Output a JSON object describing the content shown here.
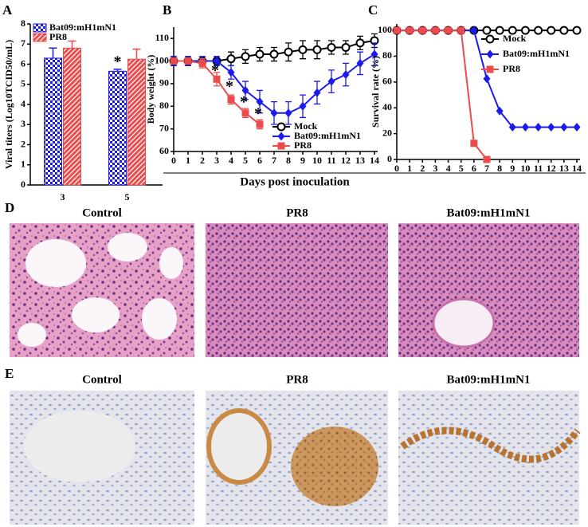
{
  "chart_data": [
    {
      "type": "bar",
      "panel_label": "A",
      "ylabel": "Viral titers (Log10TCID50/mL)",
      "categories": [
        "3",
        "5"
      ],
      "series": [
        {
          "name": "Bat09:mH1mN1",
          "color": "#1b1bf0",
          "fill": "checker",
          "values": [
            6.3,
            5.65
          ],
          "errors": [
            0.5,
            0.1
          ]
        },
        {
          "name": "PR8",
          "color": "#ea4b4b",
          "fill": "stripes",
          "values": [
            6.8,
            6.25
          ],
          "errors": [
            0.35,
            0.5
          ]
        }
      ],
      "ylim": [
        0,
        8
      ],
      "yticks": [
        0,
        1,
        2,
        3,
        4,
        5,
        6,
        7,
        8
      ],
      "legend": "top-left",
      "annotations": [
        {
          "text": "*",
          "category": 1,
          "series": 0
        }
      ]
    },
    {
      "type": "line",
      "panel_label": "B",
      "ylabel": "Body weight (%)",
      "x": [
        0,
        1,
        2,
        3,
        4,
        5,
        6,
        7,
        8,
        9,
        10,
        11,
        12,
        13,
        14
      ],
      "series": [
        {
          "name": "Mock",
          "color": "#000000",
          "marker": "circle-open",
          "values": [
            100,
            100,
            100,
            100,
            101,
            102,
            103,
            103,
            104,
            105,
            105,
            106,
            106,
            108,
            109
          ],
          "errors": [
            2,
            2,
            2,
            2,
            3,
            3,
            3,
            3,
            4,
            4,
            4,
            3,
            3,
            3,
            3
          ]
        },
        {
          "name": "Bat09:mH1mN1",
          "color": "#1b1bf0",
          "marker": "diamond",
          "values": [
            100,
            100,
            100,
            100,
            95,
            87,
            82,
            77,
            77,
            80,
            86,
            91,
            94,
            99,
            103
          ],
          "errors": [
            2,
            2,
            2,
            2,
            3,
            4,
            5,
            5,
            5,
            5,
            5,
            5,
            5,
            5,
            5
          ]
        },
        {
          "name": "PR8",
          "color": "#ea4b4b",
          "marker": "square",
          "values": [
            100,
            100,
            99,
            92,
            83,
            77,
            72,
            null,
            null,
            null,
            null,
            null,
            null,
            null,
            null
          ],
          "errors": [
            1,
            1,
            2,
            3,
            2,
            2,
            2,
            null,
            null,
            null,
            null,
            null,
            null,
            null,
            null
          ]
        }
      ],
      "xlim": [
        0,
        14
      ],
      "xticks": [
        0,
        1,
        2,
        3,
        4,
        5,
        6,
        7,
        8,
        9,
        10,
        11,
        12,
        13,
        14
      ],
      "ylim": [
        60,
        115
      ],
      "yticks": [
        60,
        70,
        80,
        90,
        100,
        110
      ],
      "legend": "bottom-right",
      "annotations": [
        {
          "text": "*",
          "x": 3
        },
        {
          "text": "*",
          "x": 4
        },
        {
          "text": "*",
          "x": 5
        },
        {
          "text": "*",
          "x": 6
        }
      ]
    },
    {
      "type": "line",
      "panel_label": "C",
      "ylabel": "Survival rate (%)",
      "x": [
        0,
        1,
        2,
        3,
        4,
        5,
        6,
        7,
        8,
        9,
        10,
        11,
        12,
        13,
        14
      ],
      "series": [
        {
          "name": "Mock",
          "color": "#000000",
          "marker": "circle-open",
          "values": [
            100,
            100,
            100,
            100,
            100,
            100,
            100,
            100,
            100,
            100,
            100,
            100,
            100,
            100,
            100
          ]
        },
        {
          "name": "Bat09:mH1mN1",
          "color": "#1b1bf0",
          "marker": "diamond",
          "values": [
            100,
            100,
            100,
            100,
            100,
            100,
            100,
            62.5,
            37.5,
            25,
            25,
            25,
            25,
            25,
            25
          ]
        },
        {
          "name": "PR8",
          "color": "#ea4b4b",
          "marker": "square",
          "values": [
            100,
            100,
            100,
            100,
            100,
            100,
            12.5,
            0,
            null,
            null,
            null,
            null,
            null,
            null,
            null
          ]
        }
      ],
      "xlim": [
        0,
        14
      ],
      "xticks": [
        0,
        1,
        2,
        3,
        4,
        5,
        6,
        7,
        8,
        9,
        10,
        11,
        12,
        13,
        14
      ],
      "ylim": [
        0,
        105
      ],
      "yticks": [
        0,
        20,
        40,
        60,
        80,
        100
      ],
      "legend": "right"
    }
  ],
  "shared_xlabel": "Days post inoculation",
  "micrographs": {
    "rows": [
      {
        "label": "D",
        "titles": [
          "Control",
          "PR8",
          "Bat09:mH1mN1"
        ]
      },
      {
        "label": "E",
        "titles": [
          "Control",
          "PR8",
          "Bat09:mH1mN1"
        ]
      }
    ]
  }
}
